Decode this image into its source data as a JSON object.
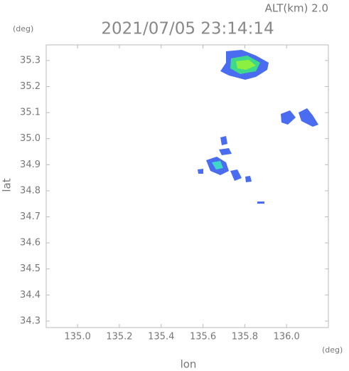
{
  "chart_data": {
    "type": "map",
    "title": "2021/07/05 23:14:14",
    "subtitle": "ALT(km)  2.0",
    "ylabel": "lat",
    "xlabel": "lon",
    "yunit": "(deg)",
    "xunit": "(deg)",
    "xlim": [
      134.85,
      136.2
    ],
    "xticks": [
      {
        "value": 135.0,
        "label": "135.0"
      },
      135.2,
      135.4,
      135.6,
      135.8,
      {
        "value": 136.0,
        "label": "136.0"
      }
    ],
    "ylim": [
      34.275,
      35.36
    ],
    "yticks": [
      34.3,
      34.4,
      34.5,
      34.6,
      34.7,
      34.8,
      34.9,
      {
        "value": 35.0,
        "label": "35.0"
      },
      35.1,
      35.2,
      35.3
    ]
  }
}
